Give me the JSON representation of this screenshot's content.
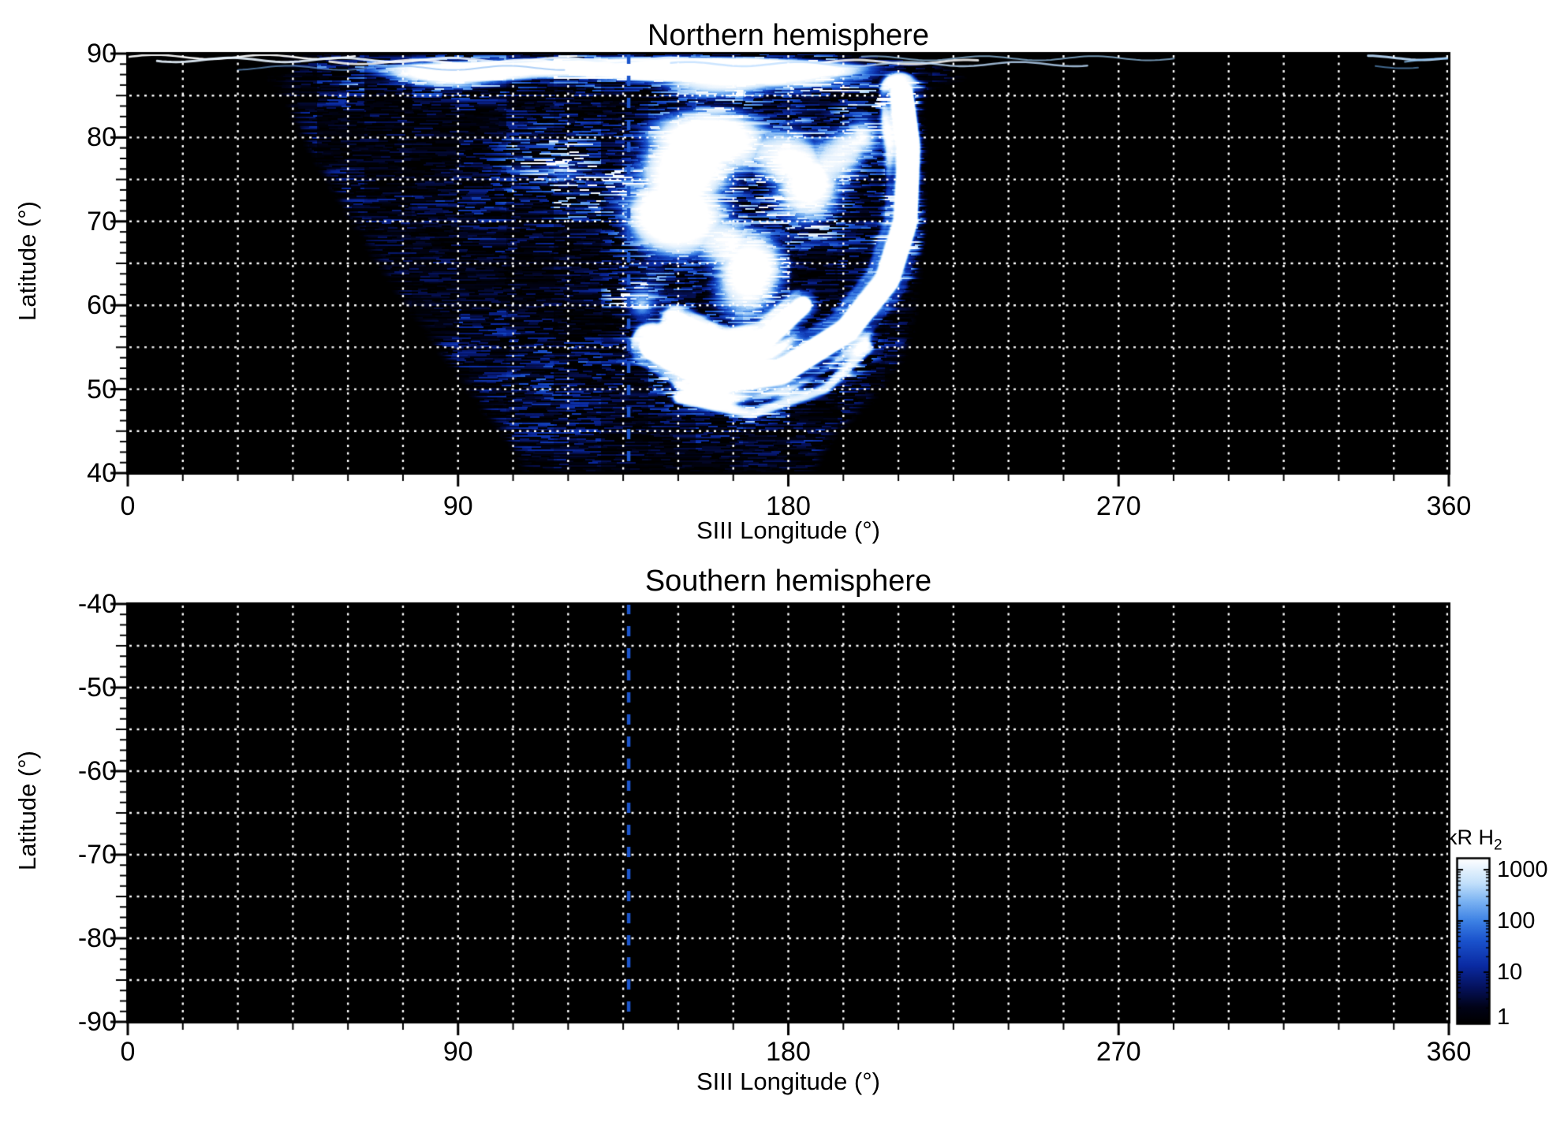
{
  "figure": {
    "background": "#ffffff",
    "grid_color": "#ffffff",
    "axis_color": "#000000"
  },
  "chart_data": {
    "type": "heatmap",
    "description": "Two-panel map of auroral H2 emission brightness versus SIII longitude and latitude; northern hemisphere shows a bright speckled auroral region, southern hemisphere has no data (black).",
    "panels": [
      {
        "title": "Northern hemisphere",
        "xlabel": "SIII Longitude (°)",
        "ylabel": "Latitude (°)",
        "xlim": [
          0,
          360
        ],
        "ylim": [
          40,
          90
        ],
        "x_major_ticks": [
          0,
          90,
          180,
          270,
          360
        ],
        "x_minor_step_deg": 15,
        "y_major_ticks": [
          90,
          80,
          70,
          60,
          50,
          40
        ],
        "y_minor_step_deg": 1.25,
        "grid": {
          "x_step_deg": 15,
          "y_step_deg": 5,
          "style": "dotted",
          "color": "#ffffff"
        },
        "reference_line": {
          "longitude_deg": 136.5,
          "color": "#1b55cc",
          "style": "dashed"
        },
        "background": "#000000",
        "emission": {
          "extent_lon_deg": [
            40,
            218
          ],
          "extent_lat_deg": [
            40,
            90
          ],
          "polygon": [
            [
              42,
              90
            ],
            [
              41,
              87
            ],
            [
              44,
              83
            ],
            [
              50,
              78
            ],
            [
              58,
              72
            ],
            [
              66,
              66
            ],
            [
              74,
              61
            ],
            [
              84,
              55
            ],
            [
              94,
              49
            ],
            [
              103,
              44
            ],
            [
              108,
              40
            ],
            [
              187,
              40
            ],
            [
              192,
              44
            ],
            [
              199,
              47
            ],
            [
              206,
              50
            ],
            [
              211,
              53
            ],
            [
              214,
              57
            ],
            [
              216,
              62
            ],
            [
              217,
              70
            ],
            [
              217,
              78
            ],
            [
              216,
              84
            ],
            [
              214,
              88
            ],
            [
              212,
              90
            ]
          ],
          "top_band_mask": [
            22,
            240,
            85,
            90
          ],
          "blobs": [
            [
              125,
              88.5,
              90,
              2.0,
              1.0
            ],
            [
              170,
              87.3,
              60,
              3.2,
              0.95
            ],
            [
              88,
              86.8,
              34,
              2.4,
              0.75
            ],
            [
              158,
              80,
              32,
              7,
              0.95
            ],
            [
              148,
              71,
              22,
              8,
              0.85
            ],
            [
              170,
              64,
              15,
              7,
              0.7
            ],
            [
              186,
              75,
              16,
              8,
              0.8
            ],
            [
              200,
              80,
              13,
              6,
              0.72
            ],
            [
              118,
              76,
              22,
              7,
              0.5
            ],
            [
              140,
              60,
              12,
              6,
              0.5
            ],
            [
              163,
              55,
              22,
              9,
              0.4
            ],
            [
              165,
              68,
              55,
              16,
              0.33
            ],
            [
              130,
              50,
              30,
              8,
              0.22
            ]
          ],
          "arcs": [
            {
              "pts": [
                [
                  143,
                  55
                ],
                [
                  160,
                  51
                ],
                [
                  178,
                  52
                ],
                [
                  196,
                  57
                ],
                [
                  207,
                  63
                ],
                [
                  212,
                  70
                ],
                [
                  213,
                  79
                ],
                [
                  211,
                  85
                ]
              ],
              "w": 2.2,
              "amp": 0.95
            },
            {
              "pts": [
                [
                  150,
                  58
                ],
                [
                  162,
                  55
                ],
                [
                  174,
                  56
                ],
                [
                  184,
                  60
                ]
              ],
              "w": 1.6,
              "amp": 0.75
            },
            {
              "pts": [
                [
                  150,
                  49
                ],
                [
                  170,
                  47
                ],
                [
                  190,
                  50
                ],
                [
                  202,
                  55
                ]
              ],
              "w": 1.4,
              "amp": 0.45
            }
          ],
          "streaks": [
            [
              89.6,
              0,
              62,
              2.5,
              0.95,
              "#ffffff",
              0
            ],
            [
              89.25,
              8,
              150,
              3,
              0.9,
              "#e8f4ff",
              2
            ],
            [
              89.0,
              55,
              232,
              3,
              0.85,
              "#ffffff",
              4
            ],
            [
              88.75,
              148,
              262,
              2.5,
              0.8,
              "#bfdfff",
              1
            ],
            [
              89.45,
              200,
              286,
              2,
              0.7,
              "#9fd0f8",
              3
            ],
            [
              88.3,
              30,
              120,
              2,
              0.6,
              "#7ab2f2",
              5
            ],
            [
              89.5,
              338,
              360,
              3,
              0.9,
              "#bfdfff",
              0
            ],
            [
              89.15,
              348,
              360,
              2,
              0.8,
              "#8fc4f4",
              2
            ],
            [
              88.5,
              340,
              352,
              2,
              0.6,
              "#6aaae8",
              1
            ]
          ]
        }
      },
      {
        "title": "Southern hemisphere",
        "xlabel": "SIII Longitude (°)",
        "ylabel": "Latitude (°)",
        "xlim": [
          0,
          360
        ],
        "ylim": [
          -90,
          -40
        ],
        "x_major_ticks": [
          0,
          90,
          180,
          270,
          360
        ],
        "x_minor_step_deg": 15,
        "y_major_ticks": [
          -40,
          -50,
          -60,
          -70,
          -80,
          -90
        ],
        "y_minor_step_deg": 1.25,
        "grid": {
          "x_step_deg": 15,
          "y_step_deg": 5,
          "style": "dotted",
          "color": "#ffffff"
        },
        "reference_line": {
          "longitude_deg": 136.5,
          "color": "#1b55cc",
          "style": "dashed"
        },
        "background": "#000000",
        "emission": null
      }
    ],
    "colorbar": {
      "title": "kR H",
      "title_sub": "2",
      "scale": "log",
      "unit": "kR",
      "tick_values": [
        1000,
        100,
        10,
        1
      ],
      "tick_labels": [
        "1000",
        "100",
        "10",
        "1"
      ],
      "colormap": [
        [
          0.0,
          "#000000"
        ],
        [
          0.1,
          "#010318"
        ],
        [
          0.22,
          "#05125e"
        ],
        [
          0.35,
          "#0a2aa2"
        ],
        [
          0.5,
          "#1a52cc"
        ],
        [
          0.62,
          "#3c80e4"
        ],
        [
          0.74,
          "#7ab2f2"
        ],
        [
          0.85,
          "#c2e0fb"
        ],
        [
          1.0,
          "#ffffff"
        ]
      ]
    }
  }
}
